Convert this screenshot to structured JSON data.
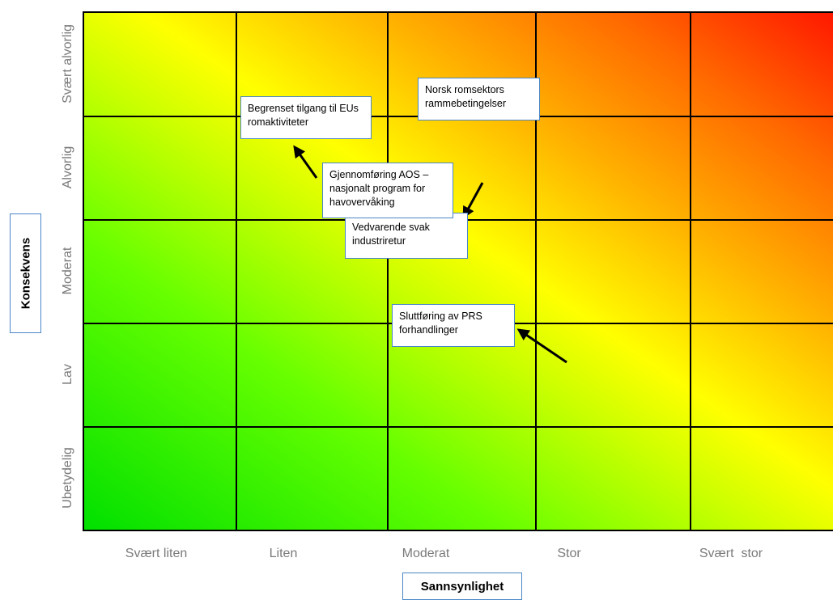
{
  "axes": {
    "y_title": "Konsekvens",
    "x_title": "Sannsynlighet",
    "y_levels": [
      "Svært alvorlig",
      "Alvorlig",
      "Moderat",
      "Lav",
      "Ubetydelig"
    ],
    "x_levels": [
      "Svært liten",
      "Liten",
      "Moderat",
      "Stor",
      "Svært  stor"
    ]
  },
  "risks": [
    {
      "id": "begrenset",
      "text": "Begrenset tilgang til EUs romaktiviteter"
    },
    {
      "id": "norsk",
      "text": "Norsk romsektors rammebetingelser"
    },
    {
      "id": "aos",
      "text": "Gjennomføring AOS – nasjonalt program for havovervåking"
    },
    {
      "id": "industri",
      "text": "Vedvarende svak industriretur"
    },
    {
      "id": "prs",
      "text": "Sluttføring av PRS forhandlinger"
    }
  ],
  "colors": {
    "low": "#00e000",
    "mid": "#ffff00",
    "high": "#ff1800",
    "box_border": "#4a86c5"
  }
}
